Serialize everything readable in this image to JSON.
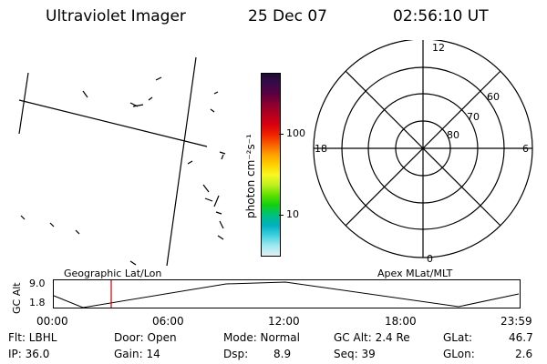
{
  "header": {
    "title": "Ultraviolet Imager",
    "date": "25 Dec 07",
    "time": "02:56:10 UT"
  },
  "colorbar": {
    "unit_label": "photon cm⁻²s⁻¹",
    "ticks": [
      "100",
      "10"
    ],
    "colors": [
      "#1b0a35",
      "#3a0a4a",
      "#5a0040",
      "#8a0030",
      "#b30020",
      "#d80010",
      "#f02000",
      "#f86000",
      "#ffa000",
      "#ffd000",
      "#f8f820",
      "#c0f020",
      "#60e000",
      "#10d010",
      "#00c080",
      "#00b0c0",
      "#40d0e0",
      "#a0e8f0",
      "#e0f0f4"
    ]
  },
  "polar": {
    "mlt_labels": {
      "top": "12",
      "left": "18",
      "right": "6",
      "bottom": "0"
    },
    "lat_labels": [
      "60",
      "70",
      "80"
    ]
  },
  "timeline": {
    "left_title": "Geographic Lat/Lon",
    "right_title": "Apex MLat/MLT",
    "axis_label": "GC Alt",
    "y_ticks": [
      "9.0",
      "1.8"
    ],
    "x_ticks": [
      "00:00",
      "06:00",
      "12:00",
      "18:00",
      "23:59"
    ],
    "marker_color": "#cc0000"
  },
  "footer": {
    "filter": "Flt: LBHL",
    "door": "Door: Open",
    "mode": "Mode: Normal",
    "gc_alt": "GC Alt: 2.4 Re",
    "glat_label": "GLat:",
    "glat_value": "46.7",
    "ip": "IP: 36.0",
    "gain": "Gain: 14",
    "dsp_label": "Dsp:",
    "dsp_value": "8.9",
    "seq": "Seq: 39",
    "glon_label": "GLon:",
    "glon_value": "2.6"
  }
}
